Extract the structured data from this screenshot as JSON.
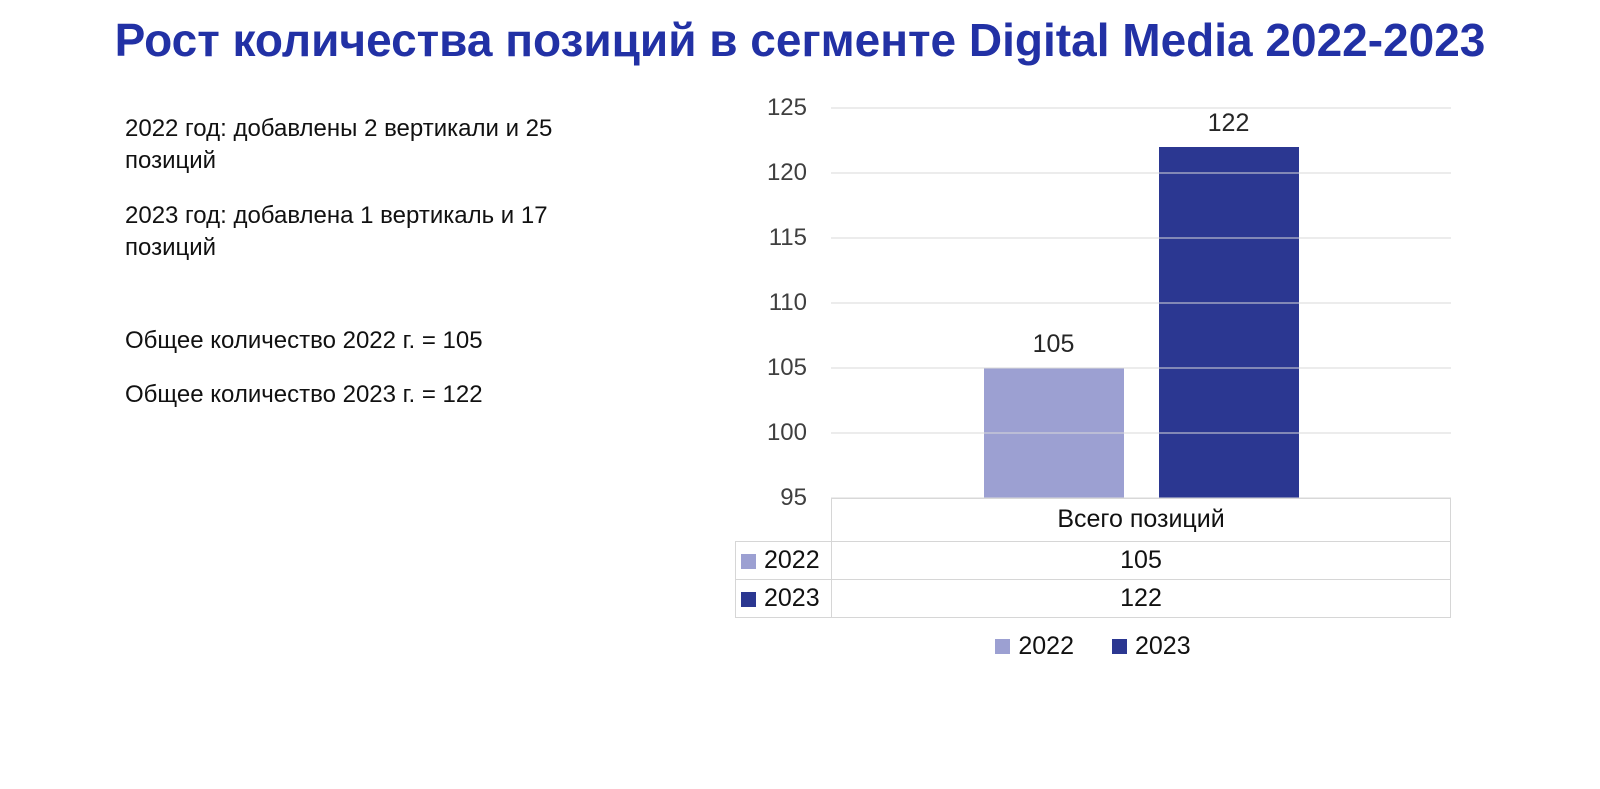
{
  "title": "Рост количества позиций в сегменте Digital Media 2022-2023",
  "notes": [
    "2022 год: добавлены 2 вертикали и 25 позиций",
    "2023 год: добавлена 1 вертикаль и 17 позиций",
    "Общее количество 2022 г. = 105",
    "Общее количество 2023 г. = 122"
  ],
  "colors": {
    "title": "#2231A5",
    "bar_2022": "#9CA0D2",
    "bar_2023": "#2B3791",
    "gridline": "#DADADA",
    "table_border": "#D6D6D6"
  },
  "chart_data": {
    "type": "bar",
    "categories": [
      "Всего позиций"
    ],
    "series": [
      {
        "name": "2022",
        "values": [
          105
        ],
        "color": "#9CA0D2"
      },
      {
        "name": "2023",
        "values": [
          122
        ],
        "color": "#2B3791"
      }
    ],
    "ylim": [
      95,
      125
    ],
    "yticks": [
      95,
      100,
      105,
      110,
      115,
      120,
      125
    ],
    "grid": true,
    "data_labels": true,
    "legend_position": "bottom",
    "table": {
      "header": "Всего позиций",
      "rows": [
        {
          "series": "2022",
          "value": "105"
        },
        {
          "series": "2023",
          "value": "122"
        }
      ]
    }
  }
}
